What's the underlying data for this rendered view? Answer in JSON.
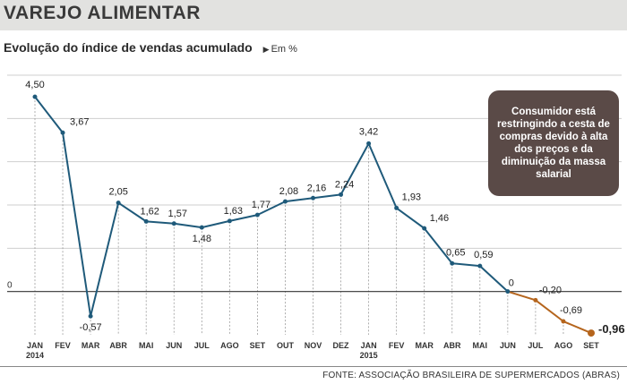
{
  "header": {
    "title": "VAREJO ALIMENTAR",
    "subtitle": "Evolução do índice de vendas acumulado",
    "unit": "Em %"
  },
  "note": "Consumidor está restringindo a cesta de compras devido à alta dos preços e da diminuição da massa salarial",
  "source": "FONTE: ASSOCIAÇÃO BRASILEIRA DE SUPERMERCADOS (ABRAS)",
  "chart_data": {
    "type": "line",
    "categories": [
      "JAN 2014",
      "FEV",
      "MAR",
      "ABR",
      "MAI",
      "JUN",
      "JUL",
      "AGO",
      "SET",
      "OUT",
      "NOV",
      "DEZ",
      "JAN 2015",
      "FEV",
      "MAR",
      "ABR",
      "MAI",
      "JUN",
      "JUL",
      "AGO",
      "SET"
    ],
    "category_lines": [
      [
        "JAN",
        "2014"
      ],
      [
        "FEV"
      ],
      [
        "MAR"
      ],
      [
        "ABR"
      ],
      [
        "MAI"
      ],
      [
        "JUN"
      ],
      [
        "JUL"
      ],
      [
        "AGO"
      ],
      [
        "SET"
      ],
      [
        "OUT"
      ],
      [
        "NOV"
      ],
      [
        "DEZ"
      ],
      [
        "JAN",
        "2015"
      ],
      [
        "FEV"
      ],
      [
        "MAR"
      ],
      [
        "ABR"
      ],
      [
        "MAI"
      ],
      [
        "JUN"
      ],
      [
        "JUL"
      ],
      [
        "AGO"
      ],
      [
        "SET"
      ]
    ],
    "values": [
      4.5,
      3.67,
      -0.57,
      2.05,
      1.62,
      1.57,
      1.48,
      1.63,
      1.77,
      2.08,
      2.16,
      2.24,
      3.42,
      1.93,
      1.46,
      0.65,
      0.59,
      0,
      -0.2,
      -0.69,
      -0.96
    ],
    "data_labels": [
      "4,50",
      "3,67",
      "-0,57",
      "2,05",
      "1,62",
      "1,57",
      "1,48",
      "1,63",
      "1,77",
      "2,08",
      "2,16",
      "2,24",
      "3,42",
      "1,93",
      "1,46",
      "0,65",
      "0,59",
      "0",
      "-0,20",
      "-0,69",
      "-0,96"
    ],
    "zero_label": "0",
    "ylim": [
      -1.0,
      5.0
    ],
    "grid": true,
    "colors": {
      "line_positive": "#1f5a7a",
      "line_negative": "#b5651d",
      "grid": "#cfcfcf",
      "axis": "#333333"
    }
  }
}
